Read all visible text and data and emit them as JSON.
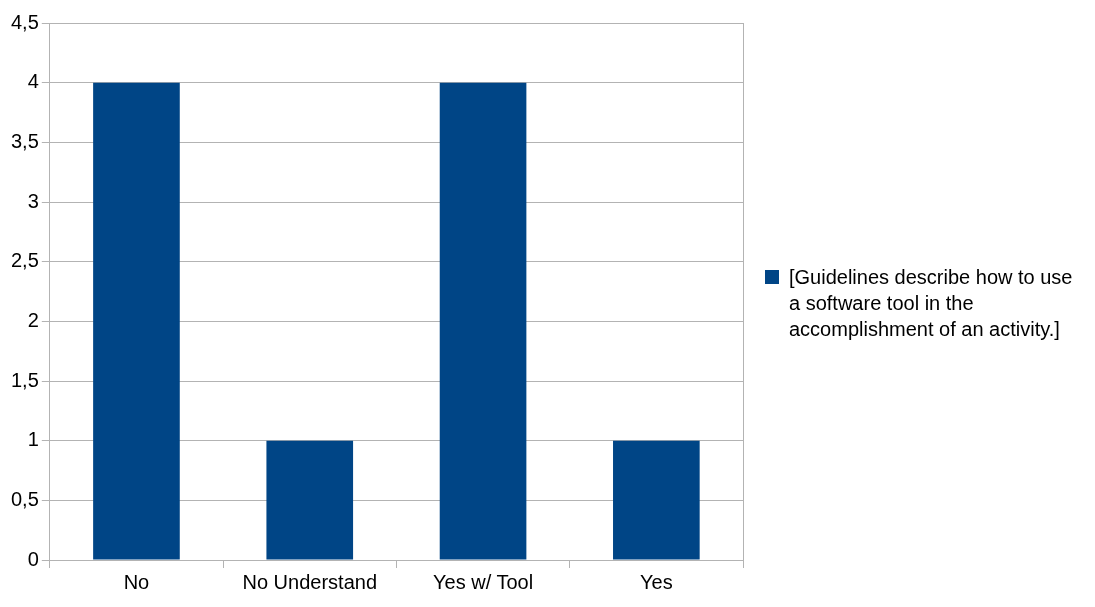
{
  "chart_data": {
    "type": "bar",
    "categories": [
      "No",
      "No Understand",
      "Yes w/ Tool",
      "Yes"
    ],
    "series": [
      {
        "name": "[Guidelines describe how to use a software tool in the accomplishment of an activity.]",
        "color": "#004586",
        "values": [
          4,
          1,
          4,
          1
        ]
      }
    ],
    "ylim": [
      0,
      4.5
    ],
    "yticks": [
      0,
      {
        "value": 0.5,
        "label": "0,5"
      },
      1,
      {
        "value": 1.5,
        "label": "1,5"
      },
      2,
      {
        "value": 2.5,
        "label": "2,5"
      },
      3,
      {
        "value": 3.5,
        "label": "3,5"
      },
      4,
      {
        "value": 4.5,
        "label": "4,5"
      }
    ],
    "grid": "y",
    "legend": "right"
  }
}
